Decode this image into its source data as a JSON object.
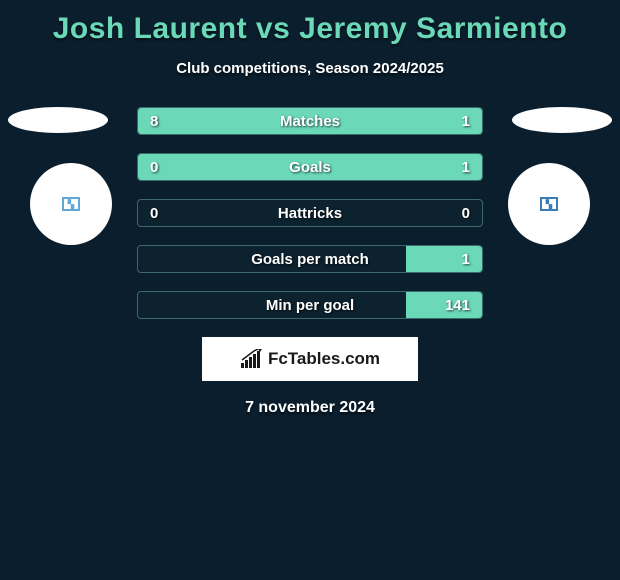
{
  "title": "Josh Laurent vs Jeremy Sarmiento",
  "subtitle": "Club competitions, Season 2024/2025",
  "date": "7 november 2024",
  "brand": "FcTables.com",
  "colors": {
    "background": "#0a1e2d",
    "accent": "#6bd8b8",
    "text": "#ffffff",
    "left_square": "#5fa8d8",
    "right_square": "#3a7bb8"
  },
  "stats": [
    {
      "label": "Matches",
      "left_val": "8",
      "right_val": "1",
      "left_pct": 77,
      "right_pct": 23
    },
    {
      "label": "Goals",
      "left_val": "0",
      "right_val": "1",
      "left_pct": 20,
      "right_pct": 80
    },
    {
      "label": "Hattricks",
      "left_val": "0",
      "right_val": "0",
      "left_pct": 0,
      "right_pct": 0
    },
    {
      "label": "Goals per match",
      "left_val": "",
      "right_val": "1",
      "left_pct": 0,
      "right_pct": 22
    },
    {
      "label": "Min per goal",
      "left_val": "",
      "right_val": "141",
      "left_pct": 0,
      "right_pct": 22
    }
  ]
}
